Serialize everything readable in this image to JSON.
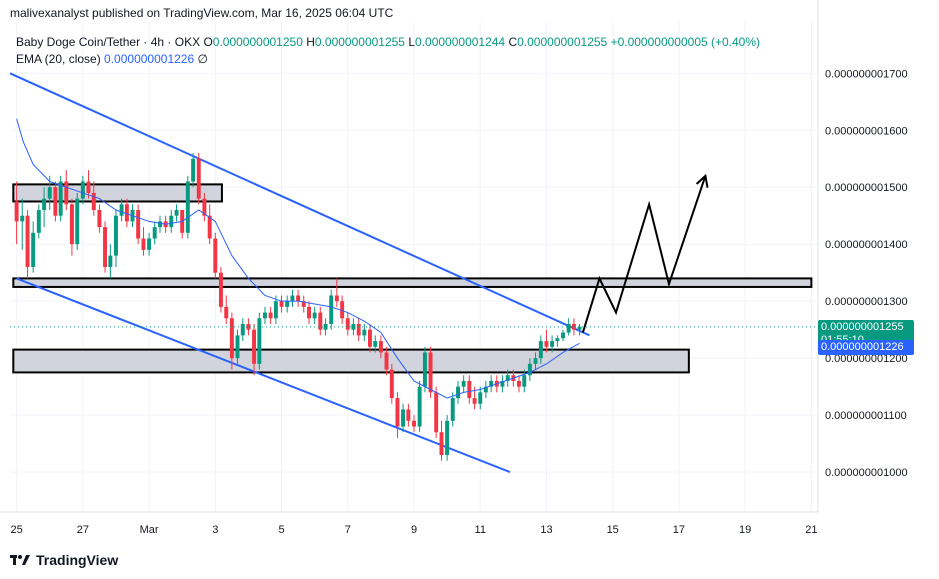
{
  "header": {
    "publisher_line": "malivexanalyst published on TradingView.com, Mar 16, 2025 06:04 UTC"
  },
  "legend": {
    "symbol": "Baby Doge Coin/Tether · 4h · OKX",
    "o_label": "O",
    "o": "0.000000001250",
    "h_label": "H",
    "h": "0.000000001255",
    "l_label": "L",
    "l": "0.000000001244",
    "c_label": "C",
    "c": "0.000000001255",
    "change": "+0.000000000005 (+0.40%)",
    "ema_label": "EMA (20, close)",
    "ema_value": "0.000000001226",
    "ema_extra": "∅"
  },
  "price_tags": {
    "last_price": "0.000000001255",
    "countdown": "01:55:10",
    "ema_price": "0.000000001226"
  },
  "footer": {
    "brand": "TradingView"
  },
  "colors": {
    "up": "#089981",
    "down": "#f23645",
    "ema": "#2962ff",
    "trendline": "#2962ff",
    "zone_fill": "#d1d4dc",
    "zone_border": "#000000",
    "projection": "#000000"
  },
  "chart_data": {
    "type": "candlestick",
    "title": "Baby Doge Coin/Tether · 4h · OKX",
    "y_ticks": [
      "0.000000001700",
      "0.000000001600",
      "0.000000001500",
      "0.000000001400",
      "0.000000001300",
      "0.000000001200",
      "0.000000001100",
      "0.000000001000"
    ],
    "y_tick_values": [
      1.7,
      1.6,
      1.5,
      1.4,
      1.3,
      1.2,
      1.1,
      1.0
    ],
    "y_unit_note": "values in 1e-9 USDT",
    "ylim": [
      0.93,
      1.79
    ],
    "x_ticks": [
      "25",
      "27",
      "Mar",
      "3",
      "5",
      "7",
      "9",
      "11",
      "13",
      "15",
      "17",
      "19",
      "21"
    ],
    "x_tick_days": [
      -4,
      -2,
      0,
      2,
      4,
      6,
      8,
      10,
      12,
      14,
      16,
      18,
      20
    ],
    "xlim_days": [
      -4.2,
      20.2
    ],
    "candles": [
      [
        -4.0,
        1.475,
        1.51,
        1.4,
        1.44
      ],
      [
        -3.83,
        1.44,
        1.48,
        1.39,
        1.45
      ],
      [
        -3.67,
        1.45,
        1.46,
        1.34,
        1.36
      ],
      [
        -3.5,
        1.36,
        1.44,
        1.35,
        1.42
      ],
      [
        -3.33,
        1.42,
        1.47,
        1.41,
        1.46
      ],
      [
        -3.17,
        1.46,
        1.5,
        1.43,
        1.48
      ],
      [
        -3.0,
        1.48,
        1.52,
        1.46,
        1.5
      ],
      [
        -2.83,
        1.5,
        1.51,
        1.44,
        1.45
      ],
      [
        -2.67,
        1.45,
        1.52,
        1.44,
        1.51
      ],
      [
        -2.5,
        1.51,
        1.53,
        1.46,
        1.47
      ],
      [
        -2.33,
        1.47,
        1.48,
        1.38,
        1.4
      ],
      [
        -2.17,
        1.4,
        1.49,
        1.39,
        1.48
      ],
      [
        -2.0,
        1.48,
        1.52,
        1.47,
        1.51
      ],
      [
        -1.83,
        1.51,
        1.53,
        1.48,
        1.49
      ],
      [
        -1.67,
        1.49,
        1.51,
        1.45,
        1.46
      ],
      [
        -1.5,
        1.46,
        1.47,
        1.42,
        1.43
      ],
      [
        -1.33,
        1.43,
        1.44,
        1.35,
        1.36
      ],
      [
        -1.17,
        1.36,
        1.4,
        1.34,
        1.38
      ],
      [
        -1.0,
        1.38,
        1.46,
        1.36,
        1.45
      ],
      [
        -0.83,
        1.45,
        1.48,
        1.44,
        1.47
      ],
      [
        -0.67,
        1.47,
        1.48,
        1.43,
        1.44
      ],
      [
        -0.5,
        1.44,
        1.47,
        1.43,
        1.46
      ],
      [
        -0.33,
        1.46,
        1.47,
        1.4,
        1.41
      ],
      [
        -0.17,
        1.41,
        1.43,
        1.38,
        1.39
      ],
      [
        0.0,
        1.39,
        1.42,
        1.38,
        1.41
      ],
      [
        0.17,
        1.41,
        1.44,
        1.4,
        1.43
      ],
      [
        0.33,
        1.43,
        1.45,
        1.42,
        1.44
      ],
      [
        0.5,
        1.44,
        1.45,
        1.42,
        1.43
      ],
      [
        0.67,
        1.43,
        1.46,
        1.42,
        1.45
      ],
      [
        0.83,
        1.45,
        1.47,
        1.44,
        1.46
      ],
      [
        1.0,
        1.46,
        1.46,
        1.41,
        1.42
      ],
      [
        1.17,
        1.42,
        1.52,
        1.41,
        1.51
      ],
      [
        1.33,
        1.51,
        1.56,
        1.5,
        1.55
      ],
      [
        1.5,
        1.55,
        1.56,
        1.47,
        1.48
      ],
      [
        1.67,
        1.48,
        1.49,
        1.44,
        1.45
      ],
      [
        1.83,
        1.45,
        1.47,
        1.4,
        1.41
      ],
      [
        2.0,
        1.41,
        1.42,
        1.34,
        1.35
      ],
      [
        2.17,
        1.35,
        1.36,
        1.28,
        1.29
      ],
      [
        2.33,
        1.29,
        1.31,
        1.26,
        1.27
      ],
      [
        2.5,
        1.27,
        1.28,
        1.18,
        1.2
      ],
      [
        2.67,
        1.2,
        1.25,
        1.19,
        1.24
      ],
      [
        2.83,
        1.24,
        1.27,
        1.23,
        1.26
      ],
      [
        3.0,
        1.26,
        1.27,
        1.24,
        1.25
      ],
      [
        3.17,
        1.25,
        1.26,
        1.17,
        1.19
      ],
      [
        3.33,
        1.19,
        1.28,
        1.18,
        1.27
      ],
      [
        3.5,
        1.27,
        1.29,
        1.26,
        1.28
      ],
      [
        3.67,
        1.28,
        1.29,
        1.26,
        1.27
      ],
      [
        3.83,
        1.27,
        1.31,
        1.26,
        1.3
      ],
      [
        4.0,
        1.3,
        1.31,
        1.28,
        1.29
      ],
      [
        4.17,
        1.29,
        1.31,
        1.28,
        1.3
      ],
      [
        4.33,
        1.3,
        1.32,
        1.29,
        1.31
      ],
      [
        4.5,
        1.31,
        1.32,
        1.29,
        1.3
      ],
      [
        4.67,
        1.3,
        1.31,
        1.28,
        1.29
      ],
      [
        4.83,
        1.29,
        1.3,
        1.26,
        1.27
      ],
      [
        5.0,
        1.27,
        1.29,
        1.26,
        1.28
      ],
      [
        5.17,
        1.28,
        1.29,
        1.24,
        1.25
      ],
      [
        5.33,
        1.25,
        1.27,
        1.24,
        1.26
      ],
      [
        5.5,
        1.26,
        1.32,
        1.25,
        1.31
      ],
      [
        5.67,
        1.31,
        1.34,
        1.29,
        1.3
      ],
      [
        5.83,
        1.3,
        1.31,
        1.26,
        1.27
      ],
      [
        6.0,
        1.27,
        1.28,
        1.24,
        1.25
      ],
      [
        6.17,
        1.25,
        1.27,
        1.24,
        1.26
      ],
      [
        6.33,
        1.26,
        1.27,
        1.23,
        1.24
      ],
      [
        6.5,
        1.24,
        1.26,
        1.23,
        1.25
      ],
      [
        6.67,
        1.25,
        1.26,
        1.21,
        1.22
      ],
      [
        6.83,
        1.22,
        1.24,
        1.21,
        1.23
      ],
      [
        7.0,
        1.23,
        1.24,
        1.2,
        1.21
      ],
      [
        7.17,
        1.21,
        1.22,
        1.17,
        1.18
      ],
      [
        7.33,
        1.18,
        1.19,
        1.12,
        1.13
      ],
      [
        7.5,
        1.13,
        1.14,
        1.06,
        1.08
      ],
      [
        7.67,
        1.08,
        1.12,
        1.07,
        1.11
      ],
      [
        7.83,
        1.11,
        1.12,
        1.08,
        1.09
      ],
      [
        8.0,
        1.09,
        1.1,
        1.07,
        1.08
      ],
      [
        8.17,
        1.08,
        1.16,
        1.07,
        1.15
      ],
      [
        8.33,
        1.15,
        1.22,
        1.14,
        1.21
      ],
      [
        8.5,
        1.21,
        1.22,
        1.13,
        1.14
      ],
      [
        8.67,
        1.14,
        1.15,
        1.06,
        1.07
      ],
      [
        8.83,
        1.07,
        1.09,
        1.02,
        1.03
      ],
      [
        9.0,
        1.03,
        1.1,
        1.02,
        1.09
      ],
      [
        9.17,
        1.09,
        1.14,
        1.08,
        1.13
      ],
      [
        9.33,
        1.13,
        1.16,
        1.12,
        1.15
      ],
      [
        9.5,
        1.15,
        1.17,
        1.14,
        1.16
      ],
      [
        9.67,
        1.16,
        1.17,
        1.12,
        1.13
      ],
      [
        9.83,
        1.13,
        1.15,
        1.11,
        1.12
      ],
      [
        10.0,
        1.12,
        1.15,
        1.11,
        1.14
      ],
      [
        10.17,
        1.14,
        1.16,
        1.13,
        1.15
      ],
      [
        10.33,
        1.15,
        1.17,
        1.14,
        1.16
      ],
      [
        10.5,
        1.16,
        1.17,
        1.14,
        1.15
      ],
      [
        10.67,
        1.15,
        1.17,
        1.14,
        1.16
      ],
      [
        10.83,
        1.16,
        1.18,
        1.15,
        1.17
      ],
      [
        11.0,
        1.17,
        1.18,
        1.15,
        1.16
      ],
      [
        11.17,
        1.16,
        1.17,
        1.14,
        1.15
      ],
      [
        11.33,
        1.15,
        1.18,
        1.14,
        1.17
      ],
      [
        11.5,
        1.17,
        1.2,
        1.16,
        1.19
      ],
      [
        11.67,
        1.19,
        1.21,
        1.18,
        1.2
      ],
      [
        11.83,
        1.2,
        1.24,
        1.19,
        1.23
      ],
      [
        12.0,
        1.23,
        1.25,
        1.21,
        1.22
      ],
      [
        12.17,
        1.22,
        1.24,
        1.21,
        1.23
      ],
      [
        12.33,
        1.23,
        1.24,
        1.22,
        1.235
      ],
      [
        12.5,
        1.235,
        1.25,
        1.23,
        1.245
      ],
      [
        12.67,
        1.245,
        1.27,
        1.24,
        1.26
      ],
      [
        12.83,
        1.26,
        1.27,
        1.24,
        1.25
      ],
      [
        13.0,
        1.25,
        1.26,
        1.24,
        1.255
      ]
    ],
    "ema_20": [
      [
        -4.0,
        1.62
      ],
      [
        -3.8,
        1.58
      ],
      [
        -3.5,
        1.54
      ],
      [
        -3.0,
        1.51
      ],
      [
        -2.5,
        1.5
      ],
      [
        -2.0,
        1.49
      ],
      [
        -1.5,
        1.48
      ],
      [
        -1.0,
        1.46
      ],
      [
        -0.5,
        1.45
      ],
      [
        0.0,
        1.44
      ],
      [
        0.5,
        1.435
      ],
      [
        1.0,
        1.44
      ],
      [
        1.5,
        1.46
      ],
      [
        2.0,
        1.44
      ],
      [
        2.5,
        1.38
      ],
      [
        3.0,
        1.34
      ],
      [
        3.5,
        1.31
      ],
      [
        4.0,
        1.3
      ],
      [
        4.5,
        1.3
      ],
      [
        5.0,
        1.295
      ],
      [
        5.5,
        1.29
      ],
      [
        6.0,
        1.28
      ],
      [
        6.5,
        1.265
      ],
      [
        7.0,
        1.245
      ],
      [
        7.5,
        1.2
      ],
      [
        8.0,
        1.16
      ],
      [
        8.5,
        1.145
      ],
      [
        9.0,
        1.13
      ],
      [
        9.5,
        1.14
      ],
      [
        10.0,
        1.145
      ],
      [
        10.5,
        1.155
      ],
      [
        11.0,
        1.165
      ],
      [
        11.5,
        1.175
      ],
      [
        12.0,
        1.19
      ],
      [
        12.5,
        1.21
      ],
      [
        13.0,
        1.226
      ]
    ],
    "trendlines": [
      {
        "name": "upper",
        "from": [
          -4.2,
          1.7
        ],
        "to": [
          13.3,
          1.24
        ]
      },
      {
        "name": "lower",
        "from": [
          -4.0,
          1.34
        ],
        "to": [
          10.9,
          1.0
        ]
      }
    ],
    "zones": [
      {
        "name": "zone-top",
        "x0": -4.1,
        "x1": 2.2,
        "y0": 1.475,
        "y1": 1.505
      },
      {
        "name": "zone-mid",
        "x0": -4.1,
        "x1": 20.0,
        "y0": 1.325,
        "y1": 1.34
      },
      {
        "name": "zone-low",
        "x0": -4.1,
        "x1": 16.3,
        "y0": 1.175,
        "y1": 1.215
      }
    ],
    "projection": [
      [
        13.1,
        1.245
      ],
      [
        13.6,
        1.34
      ],
      [
        14.1,
        1.28
      ],
      [
        15.1,
        1.47
      ],
      [
        15.7,
        1.33
      ],
      [
        16.8,
        1.52
      ]
    ],
    "last_price": 1.255,
    "ema_last": 1.226,
    "grid": true
  }
}
